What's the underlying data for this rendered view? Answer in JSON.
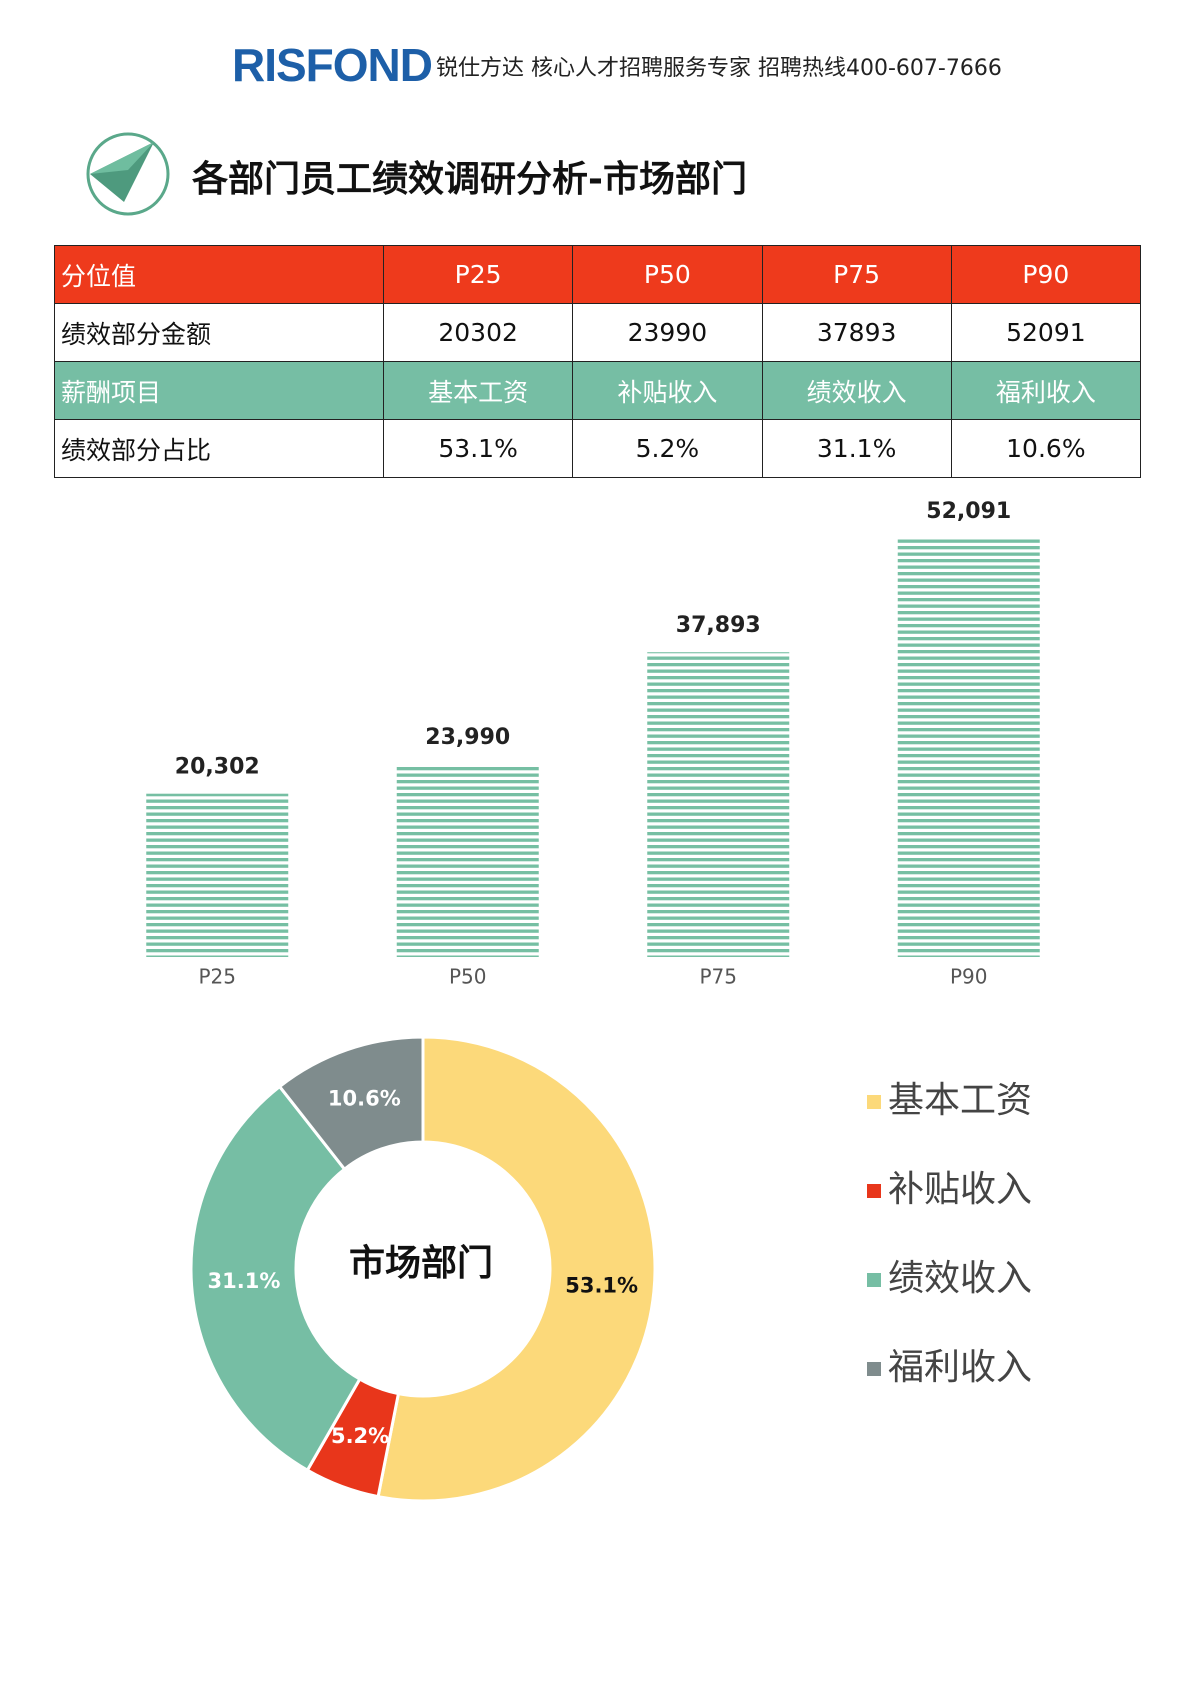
{
  "header": {
    "logo": "RISFOND",
    "tagline": "锐仕方达 核心人才招聘服务专家 招聘热线400-607-7666",
    "title": "各部门员工绩效调研分析-市场部门"
  },
  "table": {
    "rows": [
      [
        "分位值",
        "P25",
        "P50",
        "P75",
        "P90"
      ],
      [
        "绩效部分金额",
        "20302",
        "23990",
        "37893",
        "52091"
      ],
      [
        "薪酬项目",
        "基本工资",
        "补贴收入",
        "绩效收入",
        "福利收入"
      ],
      [
        "绩效部分占比",
        "53.1%",
        "5.2%",
        "31.1%",
        "10.6%"
      ]
    ]
  },
  "chart_data": [
    {
      "type": "bar",
      "categories": [
        "P25",
        "P50",
        "P75",
        "P90"
      ],
      "values": [
        20302,
        23990,
        37893,
        52091
      ],
      "value_labels": [
        "20,302",
        "23,990",
        "37,893",
        "52,091"
      ],
      "color": "#76bfa3"
    },
    {
      "type": "pie",
      "center_label": "市场部门",
      "categories": [
        "基本工资",
        "补贴收入",
        "绩效收入",
        "福利收入"
      ],
      "values": [
        53.1,
        5.2,
        31.1,
        10.6
      ],
      "value_labels": [
        "53.1%",
        "5.2%",
        "31.1%",
        "10.6%"
      ],
      "colors": [
        "#fcd97a",
        "#e8361b",
        "#76bea4",
        "#7f8c8d"
      ],
      "legend": "right"
    }
  ]
}
